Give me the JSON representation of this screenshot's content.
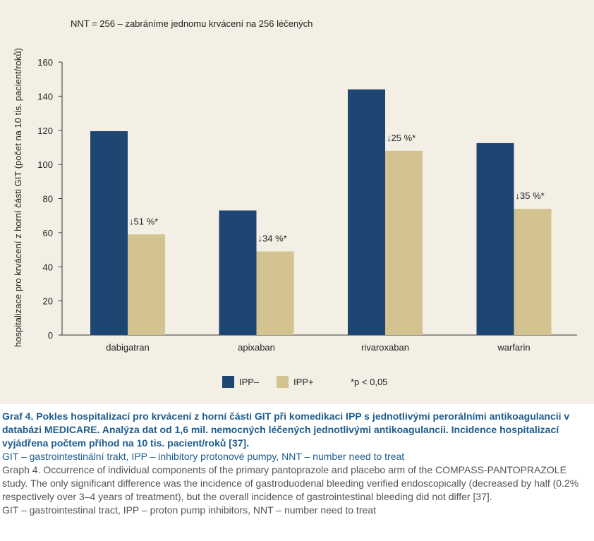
{
  "chart_data": {
    "type": "bar",
    "annotation": "NNT = 256 –  zabráníme jednomu krvácení na 256 léčených",
    "ylabel": "hospitalizace pro krvácení z horní části  GIT (počet na 10 tis. pacient/roků)",
    "xlabel": "",
    "ylim": [
      0,
      160
    ],
    "yticks": [
      0,
      20,
      40,
      60,
      80,
      100,
      120,
      140,
      160
    ],
    "categories": [
      "dabigatran",
      "apixaban",
      "rivaroxaban",
      "warfarin"
    ],
    "series": [
      {
        "name": "IPP–",
        "color": "#1d4673",
        "values": [
          119.5,
          73,
          144,
          112.5
        ]
      },
      {
        "name": "IPP+",
        "color": "#d2c391",
        "values": [
          59,
          49,
          108,
          74
        ]
      }
    ],
    "data_labels": [
      "↓51 %*",
      "↓34 %*",
      "↓25 %*",
      "↓35 %*"
    ],
    "legend_note": "*p < 0,05",
    "legend_position": "bottom",
    "grid": false
  },
  "caption": {
    "title": "Graf 4. Pokles hospitalizací pro krvácení z horní části GIT při komedikaci IPP s jednotlivými perorálními antikoagulancii v databázi MEDICARE. Analýza dat od 1,6 mil. nemocných léčených jednotlivými antikoagulancii. Incidence hospitalizací vyjádřena počtem příhod na 10 tis. pacient/roků [37].",
    "abbreviations_cz": "GIT – gastrointestinální trakt, IPP – inhibitory protonové pumpy, NNT – number need to treat",
    "english_text": "Graph 4. Occurrence of individual components of the primary pantoprazole and placebo arm of the COMPASS-PANTOPRAZOLE study. The only significant difference was the incidence of gastroduodenal bleeding verified endoscopically (decreased by half (0.2% respectively over 3–4 years of treatment), but the overall incidence of gastrointestinal bleeding did not differ [37].",
    "abbreviations_en": "GIT – gastrointestinal tract, IPP – proton pump inhibitors, NNT – number need to treat"
  }
}
